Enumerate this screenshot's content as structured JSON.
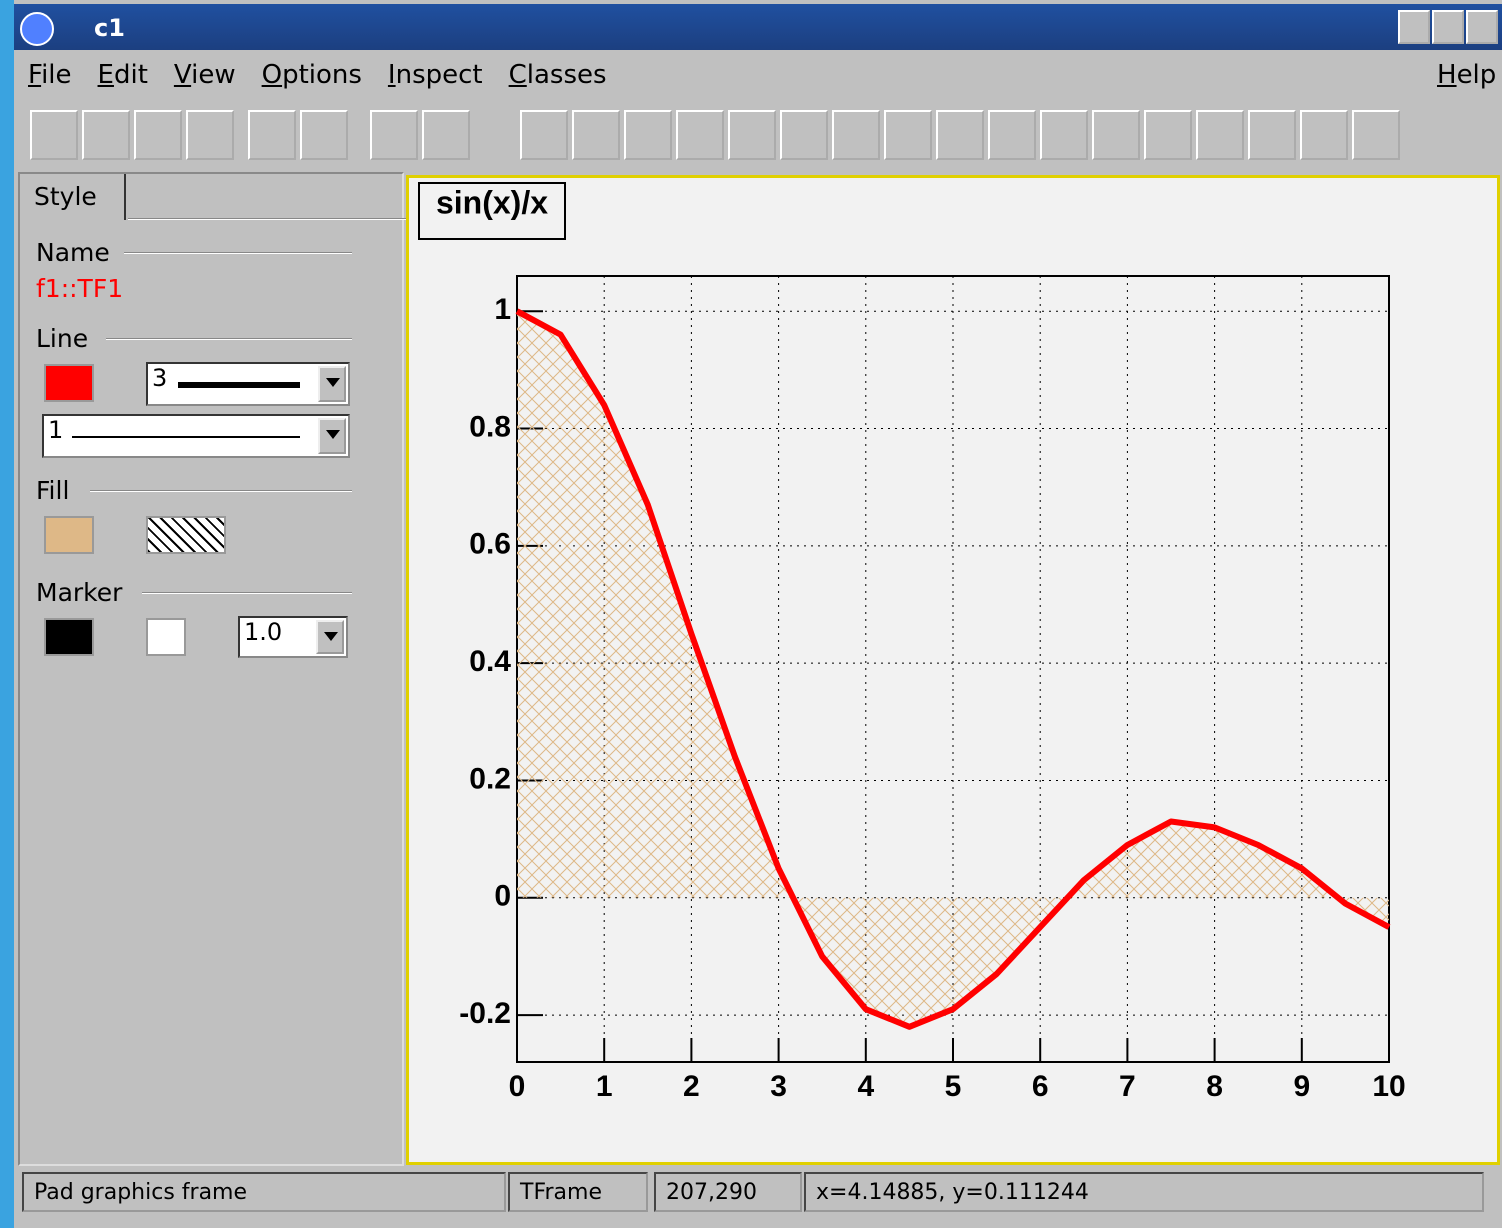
{
  "window": {
    "title": "c1",
    "menu": [
      "File",
      "Edit",
      "View",
      "Options",
      "Inspect",
      "Classes"
    ],
    "help": "Help"
  },
  "editor": {
    "tab": "Style",
    "name_label": "Name",
    "object_name": "f1::TF1",
    "line_label": "Line",
    "line_width": "3",
    "line_style": "1",
    "fill_label": "Fill",
    "marker_label": "Marker",
    "marker_size": "1.0"
  },
  "status": [
    "Pad graphics frame",
    "TFrame",
    "207,290",
    "x=4.14885, y=0.111244"
  ],
  "chart_data": {
    "type": "line",
    "title": "sin(x)/x",
    "x": [
      0,
      0.5,
      1,
      1.5,
      2,
      2.5,
      3,
      3.5,
      4,
      4.5,
      5,
      5.5,
      6,
      6.5,
      7,
      7.5,
      8,
      8.5,
      9,
      9.5,
      10
    ],
    "series": [
      {
        "color": "#ff0000",
        "values": [
          1,
          0.96,
          0.84,
          0.67,
          0.45,
          0.24,
          0.05,
          -0.1,
          -0.19,
          -0.22,
          -0.19,
          -0.13,
          -0.05,
          0.03,
          0.09,
          0.13,
          0.12,
          0.09,
          0.05,
          -0.01,
          -0.05
        ]
      }
    ],
    "fill_color": "#deb887",
    "xlim": [
      0,
      10
    ],
    "xticks": [
      0,
      1,
      2,
      3,
      4,
      5,
      6,
      7,
      8,
      9,
      10
    ],
    "ylim": [
      -0.28,
      1.06
    ],
    "yticks": [
      -0.2,
      0,
      0.2,
      0.4,
      0.6,
      0.8,
      1
    ],
    "grid": true
  }
}
